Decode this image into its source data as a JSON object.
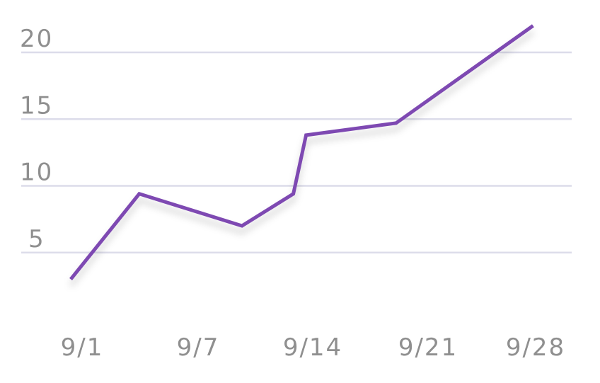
{
  "chart_data": {
    "type": "line",
    "title": "",
    "xlabel": "",
    "ylabel": "",
    "x_tick_labels": [
      "9/1",
      "9/7",
      "9/14",
      "9/21",
      "9/28"
    ],
    "y_ticks": [
      5,
      10,
      15,
      20
    ],
    "y_tick_labels": [
      "5",
      "10",
      "15",
      "20"
    ],
    "ylim": [
      0,
      20
    ],
    "grid": true,
    "legend": "none",
    "series": [
      {
        "x": [
          "9/1",
          "9/5",
          "9/11",
          "9/14",
          "9/14",
          "9/20",
          "9/28"
        ],
        "y": [
          3,
          9.4,
          7,
          9.4,
          13.8,
          14.7,
          22
        ]
      }
    ],
    "colors": {
      "line": "#7e4ab2",
      "grid": "#dcdcea",
      "tick_text": "#8f8f8f"
    }
  }
}
